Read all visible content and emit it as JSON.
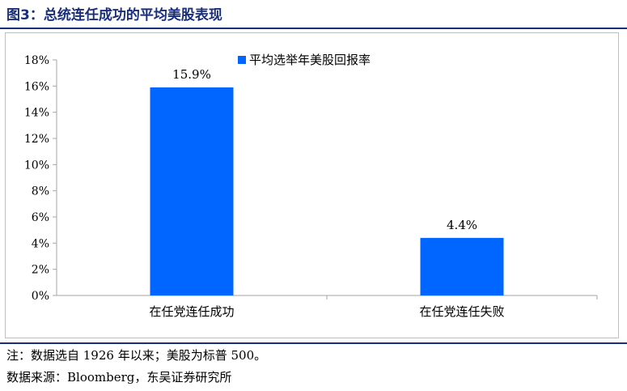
{
  "figure": {
    "title": "图3：总统连任成功的平均美股表现",
    "note": "注：数据选自 1926 年以来；美股为标普 500。",
    "source": "数据来源：Bloomberg，东吴证券研究所"
  },
  "colors": {
    "bar": "#0066ff",
    "title": "#1a2f7a",
    "axis": "#a6a6a6"
  },
  "chart_data": {
    "type": "bar",
    "title": "",
    "xlabel": "",
    "ylabel": "",
    "categories": [
      "在任党连任成功",
      "在任党连任失败"
    ],
    "series": [
      {
        "name": "平均选举年美股回报率",
        "values": [
          15.9,
          4.4
        ],
        "value_labels": [
          "15.9%",
          "4.4%"
        ]
      }
    ],
    "ylim": [
      0,
      18
    ],
    "yticks": [
      0,
      2,
      4,
      6,
      8,
      10,
      12,
      14,
      16,
      18
    ],
    "ytick_labels": [
      "0%",
      "2%",
      "4%",
      "6%",
      "8%",
      "10%",
      "12%",
      "14%",
      "16%",
      "18%"
    ],
    "grid": false,
    "legend_position": "top-right"
  }
}
